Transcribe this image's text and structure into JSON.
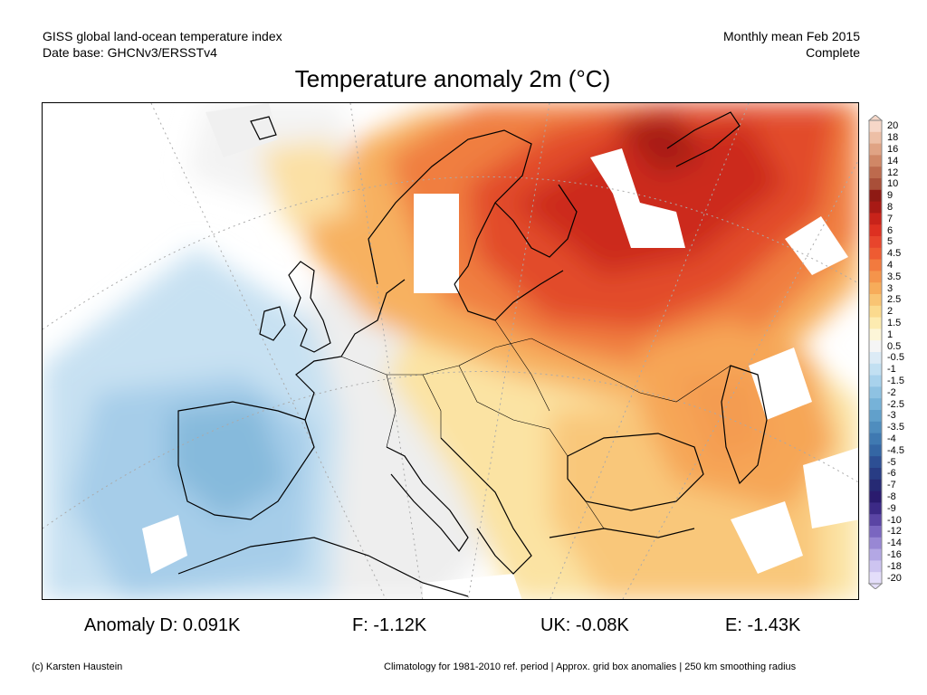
{
  "header": {
    "line1": "GISS global land-ocean temperature index",
    "line2": "Date base: GHCNv3/ERSSTv4",
    "right1": "Monthly mean Feb 2015",
    "right2": "Complete"
  },
  "title": "Temperature anomaly 2m (°C)",
  "colorbar": {
    "labels": [
      "20",
      "18",
      "16",
      "14",
      "12",
      "10",
      "9",
      "8",
      "7",
      "6",
      "5",
      "4.5",
      "4",
      "3.5",
      "3",
      "2.5",
      "2",
      "1.5",
      "1",
      "0.5",
      "-0.5",
      "-1",
      "-1.5",
      "-2",
      "-2.5",
      "-3",
      "-3.5",
      "-4",
      "-4.5",
      "-5",
      "-6",
      "-7",
      "-8",
      "-9",
      "-10",
      "-12",
      "-14",
      "-16",
      "-18",
      "-20"
    ],
    "colors": [
      "#f6d7c8",
      "#edbfa6",
      "#e0a384",
      "#d08766",
      "#bd6a4d",
      "#a94f39",
      "#8e1a14",
      "#a81a15",
      "#c8231a",
      "#dd3021",
      "#e8452c",
      "#ee5b32",
      "#f27a3e",
      "#f5944b",
      "#f7ac5a",
      "#f9c473",
      "#fbda8e",
      "#fdebb0",
      "#fdf6d8",
      "#f5f5f5",
      "#dcebf6",
      "#c2e0f2",
      "#a8d2ec",
      "#8ec2e2",
      "#76b2d8",
      "#61a0cb",
      "#4f8dbe",
      "#3f79b1",
      "#3466a4",
      "#2d4f94",
      "#283c84",
      "#262a74",
      "#2a1b6e",
      "#3c2a86",
      "#5a45a4",
      "#7a66c0",
      "#9887d4",
      "#b3a7e4",
      "#cdc4f0",
      "#e4defa"
    ]
  },
  "stats": {
    "d": "Anomaly D: 0.091K",
    "f": "F: -1.12K",
    "uk": "UK: -0.08K",
    "e": "E: -1.43K"
  },
  "footer": {
    "left": "(c) Karsten Haustein",
    "right": "Climatology for 1981-2010 ref. period | Approx. grid box anomalies | 250 km smoothing radius"
  }
}
